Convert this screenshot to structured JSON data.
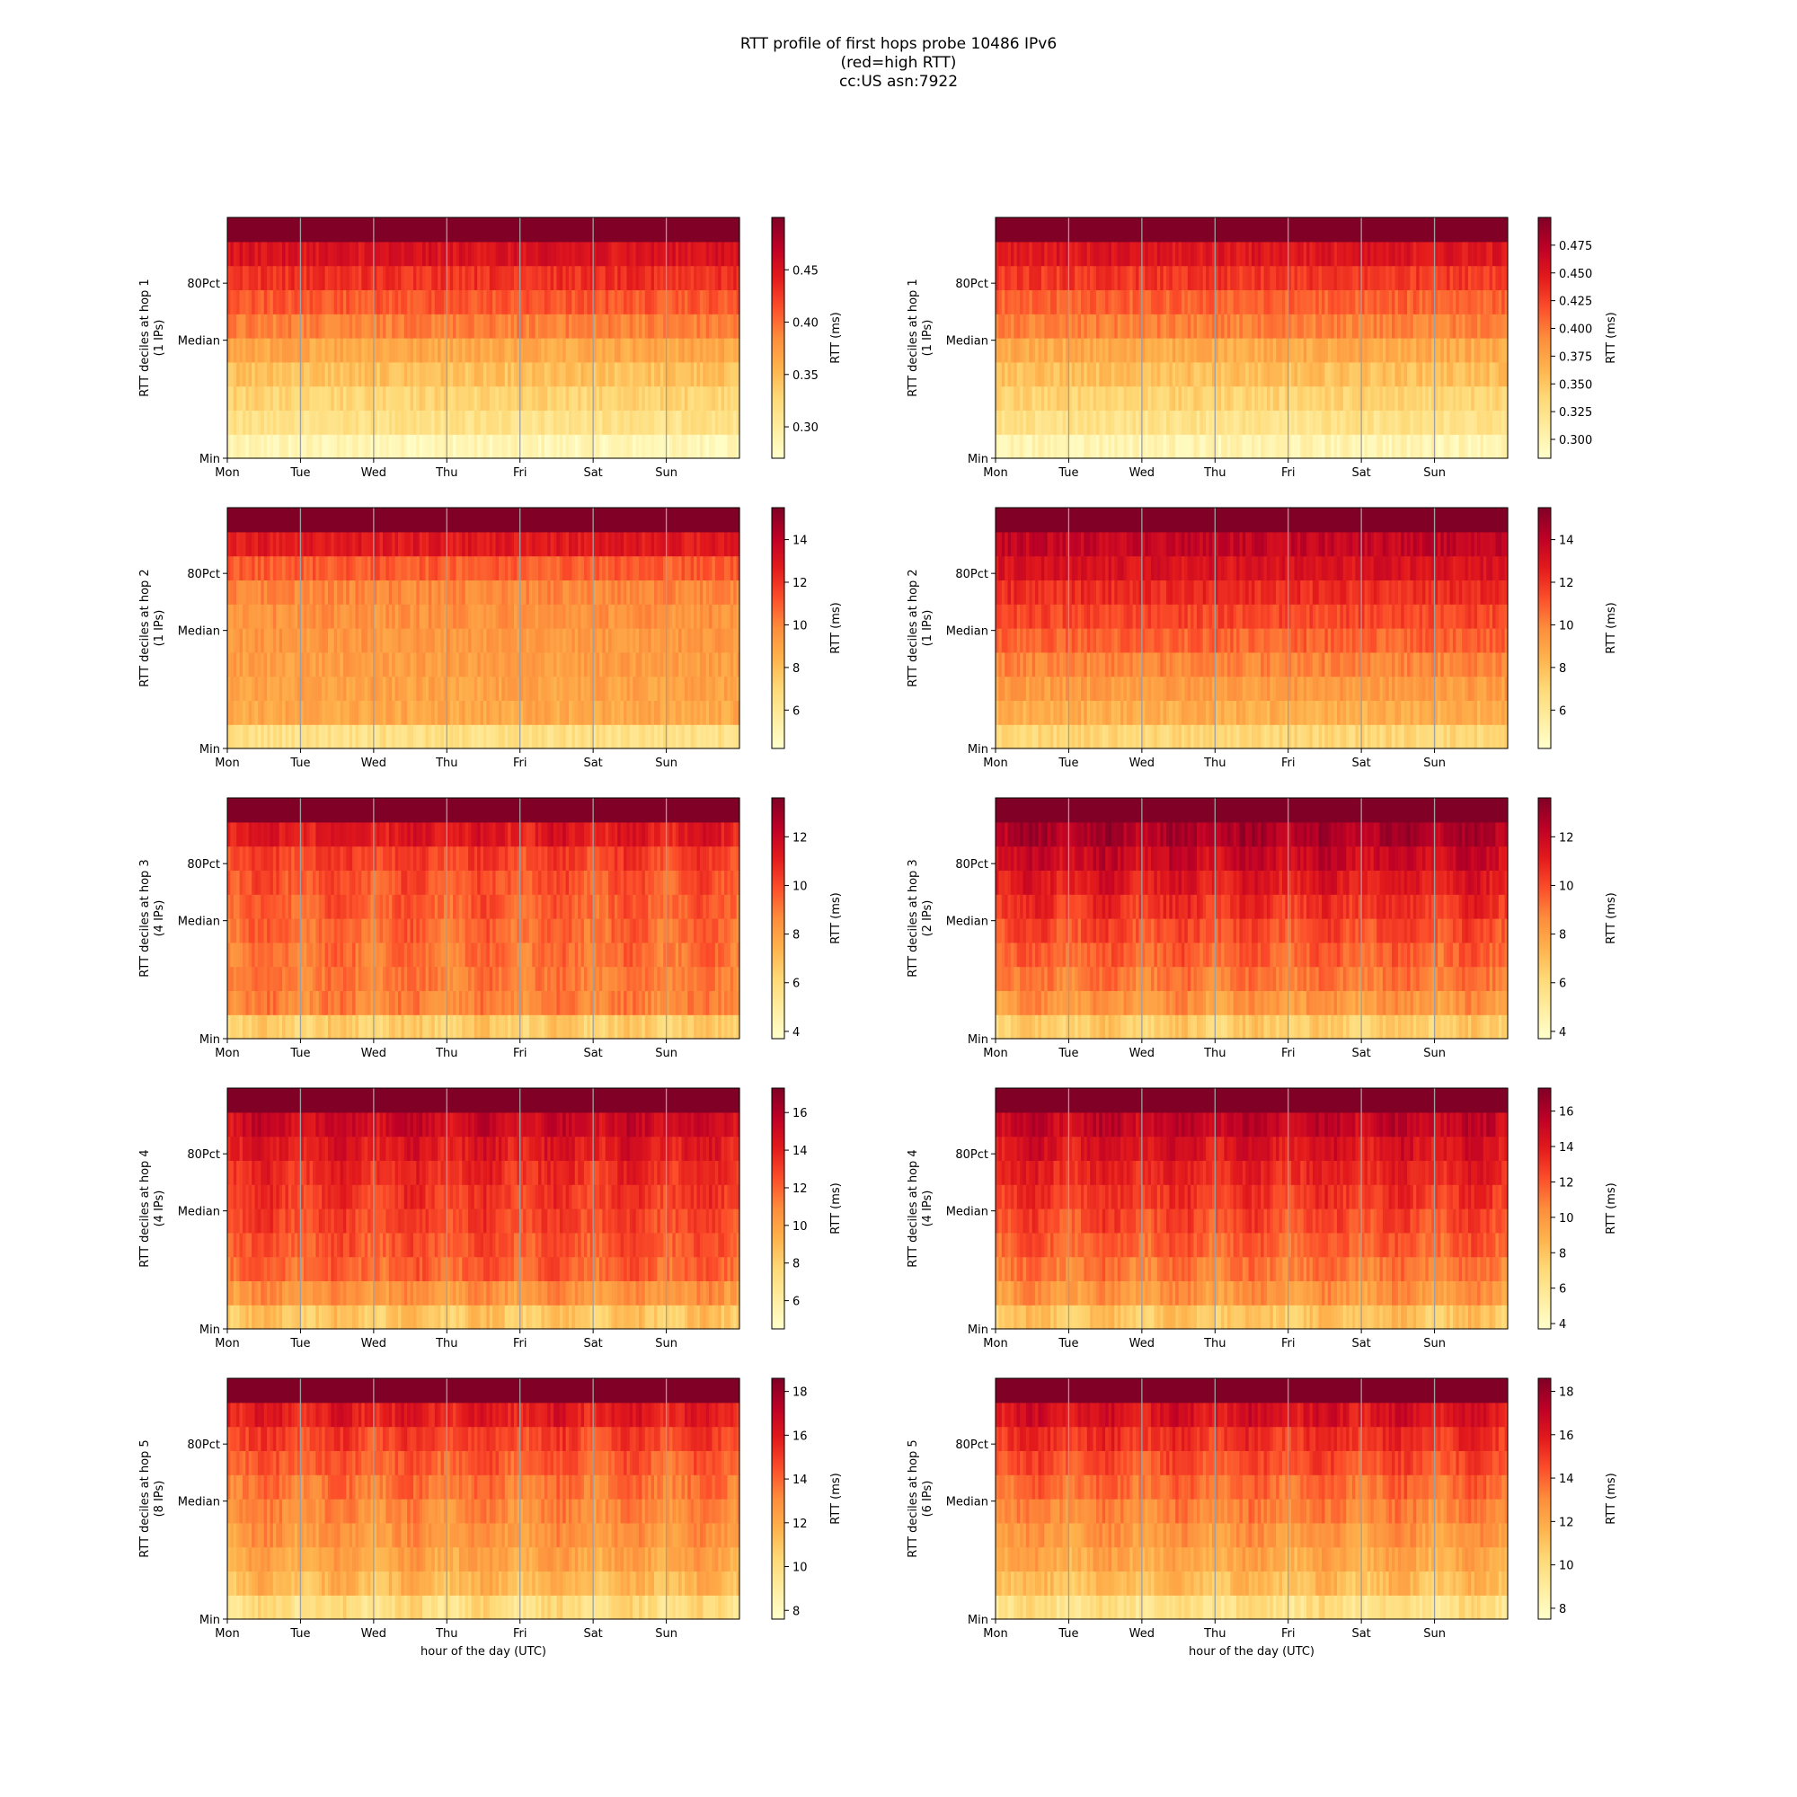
{
  "figure": {
    "title_lines": [
      "RTT profile of first hops probe 10486 IPv6",
      "(red=high RTT)",
      "cc:US asn:7922"
    ]
  },
  "colormap": [
    "#ffffcc",
    "#ffeda0",
    "#fed976",
    "#feb24c",
    "#fd8d3c",
    "#fc4e2a",
    "#e31a1c",
    "#bd0026",
    "#800026"
  ],
  "chart_data": [
    {
      "type": "heatmap",
      "hop": 1,
      "column": "left",
      "ylabel": "RTT deciles at hop 1\n(1 IPs)",
      "yticks": [
        "Min",
        "Median",
        "80Pct"
      ],
      "xticks": [
        "Mon",
        "Tue",
        "Wed",
        "Thu",
        "Fri",
        "Sat",
        "Sun"
      ],
      "xlabel": "",
      "cbar_label": "RTT (ms)",
      "cbar_ticks": [
        "0.30",
        "0.35",
        "0.40",
        "0.45"
      ],
      "cbar_range": [
        0.27,
        0.5
      ],
      "decile_levels": [
        0.285,
        0.315,
        0.33,
        0.345,
        0.365,
        0.39,
        0.41,
        0.43,
        0.45,
        0.5
      ]
    },
    {
      "type": "heatmap",
      "hop": 1,
      "column": "right",
      "ylabel": "RTT deciles at hop 1\n(1 IPs)",
      "yticks": [
        "Min",
        "Median",
        "80Pct"
      ],
      "xticks": [
        "Mon",
        "Tue",
        "Wed",
        "Thu",
        "Fri",
        "Sat",
        "Sun"
      ],
      "xlabel": "",
      "cbar_label": "RTT (ms)",
      "cbar_ticks": [
        "0.300",
        "0.325",
        "0.350",
        "0.375",
        "0.400",
        "0.425",
        "0.450",
        "0.475"
      ],
      "cbar_range": [
        0.283,
        0.5
      ],
      "decile_levels": [
        0.3,
        0.325,
        0.34,
        0.355,
        0.37,
        0.395,
        0.41,
        0.43,
        0.45,
        0.5
      ]
    },
    {
      "type": "heatmap",
      "hop": 2,
      "column": "left",
      "ylabel": "RTT deciles at hop 2\n(1 IPs)",
      "yticks": [
        "Min",
        "Median",
        "80Pct"
      ],
      "xticks": [
        "Mon",
        "Tue",
        "Wed",
        "Thu",
        "Fri",
        "Sat",
        "Sun"
      ],
      "xlabel": "",
      "cbar_label": "RTT (ms)",
      "cbar_ticks": [
        "6",
        "8",
        "10",
        "12",
        "14"
      ],
      "cbar_range": [
        4.2,
        15.5
      ],
      "decile_levels": [
        6.5,
        8.8,
        9.0,
        9.2,
        9.4,
        9.6,
        9.9,
        11.0,
        12.8,
        15.5
      ]
    },
    {
      "type": "heatmap",
      "hop": 2,
      "column": "right",
      "ylabel": "RTT deciles at hop 2\n(1 IPs)",
      "yticks": [
        "Min",
        "Median",
        "80Pct"
      ],
      "xticks": [
        "Mon",
        "Tue",
        "Wed",
        "Thu",
        "Fri",
        "Sat",
        "Sun"
      ],
      "xlabel": "",
      "cbar_label": "RTT (ms)",
      "cbar_ticks": [
        "6",
        "8",
        "10",
        "12",
        "14"
      ],
      "cbar_range": [
        4.2,
        15.5
      ],
      "decile_levels": [
        7.0,
        8.6,
        9.3,
        10.0,
        10.8,
        11.5,
        12.2,
        13.0,
        13.8,
        15.5
      ]
    },
    {
      "type": "heatmap",
      "hop": 3,
      "column": "left",
      "ylabel": "RTT deciles at hop 3\n(4 IPs)",
      "yticks": [
        "Min",
        "Median",
        "80Pct"
      ],
      "xticks": [
        "Mon",
        "Tue",
        "Wed",
        "Thu",
        "Fri",
        "Sat",
        "Sun"
      ],
      "xlabel": "",
      "cbar_label": "RTT (ms)",
      "cbar_ticks": [
        "4",
        "6",
        "8",
        "10",
        "12"
      ],
      "cbar_range": [
        3.7,
        13.6
      ],
      "decile_levels": [
        6.5,
        8.8,
        9.0,
        9.2,
        9.4,
        9.6,
        9.8,
        10.2,
        11.2,
        13.6
      ]
    },
    {
      "type": "heatmap",
      "hop": 3,
      "column": "right",
      "ylabel": "RTT deciles at hop 3\n(2 IPs)",
      "yticks": [
        "Min",
        "Median",
        "80Pct"
      ],
      "xticks": [
        "Mon",
        "Tue",
        "Wed",
        "Thu",
        "Fri",
        "Sat",
        "Sun"
      ],
      "xlabel": "",
      "cbar_label": "RTT (ms)",
      "cbar_ticks": [
        "4",
        "6",
        "8",
        "10",
        "12"
      ],
      "cbar_range": [
        3.7,
        13.6
      ],
      "decile_levels": [
        6.5,
        8.3,
        9.0,
        9.5,
        10.0,
        10.6,
        11.2,
        11.9,
        12.6,
        13.6
      ]
    },
    {
      "type": "heatmap",
      "hop": 4,
      "column": "left",
      "ylabel": "RTT deciles at hop 4\n(4 IPs)",
      "yticks": [
        "Min",
        "Median",
        "80Pct"
      ],
      "xticks": [
        "Mon",
        "Tue",
        "Wed",
        "Thu",
        "Fri",
        "Sat",
        "Sun"
      ],
      "xlabel": "",
      "cbar_label": "RTT (ms)",
      "cbar_ticks": [
        "6",
        "8",
        "10",
        "12",
        "14",
        "16"
      ],
      "cbar_range": [
        4.5,
        17.3
      ],
      "decile_levels": [
        8.5,
        10.5,
        12.0,
        12.4,
        12.8,
        13.2,
        13.6,
        14.2,
        15.0,
        17.3
      ]
    },
    {
      "type": "heatmap",
      "hop": 4,
      "column": "right",
      "ylabel": "RTT deciles at hop 4\n(4 IPs)",
      "yticks": [
        "Min",
        "Median",
        "80Pct"
      ],
      "xticks": [
        "Mon",
        "Tue",
        "Wed",
        "Thu",
        "Fri",
        "Sat",
        "Sun"
      ],
      "xlabel": "",
      "cbar_label": "RTT (ms)",
      "cbar_ticks": [
        "4",
        "6",
        "8",
        "10",
        "12",
        "14",
        "16"
      ],
      "cbar_range": [
        3.7,
        17.3
      ],
      "decile_levels": [
        8.0,
        10.0,
        11.0,
        11.8,
        12.4,
        13.0,
        13.6,
        14.3,
        15.2,
        17.3
      ]
    },
    {
      "type": "heatmap",
      "hop": 5,
      "column": "left",
      "ylabel": "RTT deciles at hop 5\n(8 IPs)",
      "yticks": [
        "Min",
        "Median",
        "80Pct"
      ],
      "xticks": [
        "Mon",
        "Tue",
        "Wed",
        "Thu",
        "Fri",
        "Sat",
        "Sun"
      ],
      "xlabel": "hour of the day (UTC)",
      "cbar_label": "RTT (ms)",
      "cbar_ticks": [
        "8",
        "10",
        "12",
        "14",
        "16",
        "18"
      ],
      "cbar_range": [
        7.6,
        18.6
      ],
      "decile_levels": [
        10.0,
        11.5,
        12.2,
        12.7,
        13.1,
        13.6,
        14.2,
        14.8,
        15.8,
        18.6
      ]
    },
    {
      "type": "heatmap",
      "hop": 5,
      "column": "right",
      "ylabel": "RTT deciles at hop 5\n(6 IPs)",
      "yticks": [
        "Min",
        "Median",
        "80Pct"
      ],
      "xticks": [
        "Mon",
        "Tue",
        "Wed",
        "Thu",
        "Fri",
        "Sat",
        "Sun"
      ],
      "xlabel": "hour of the day (UTC)",
      "cbar_label": "RTT (ms)",
      "cbar_ticks": [
        "8",
        "10",
        "12",
        "14",
        "16",
        "18"
      ],
      "cbar_range": [
        7.5,
        18.6
      ],
      "decile_levels": [
        9.8,
        11.3,
        12.0,
        12.6,
        13.2,
        13.8,
        14.5,
        15.2,
        16.2,
        18.6
      ]
    }
  ]
}
